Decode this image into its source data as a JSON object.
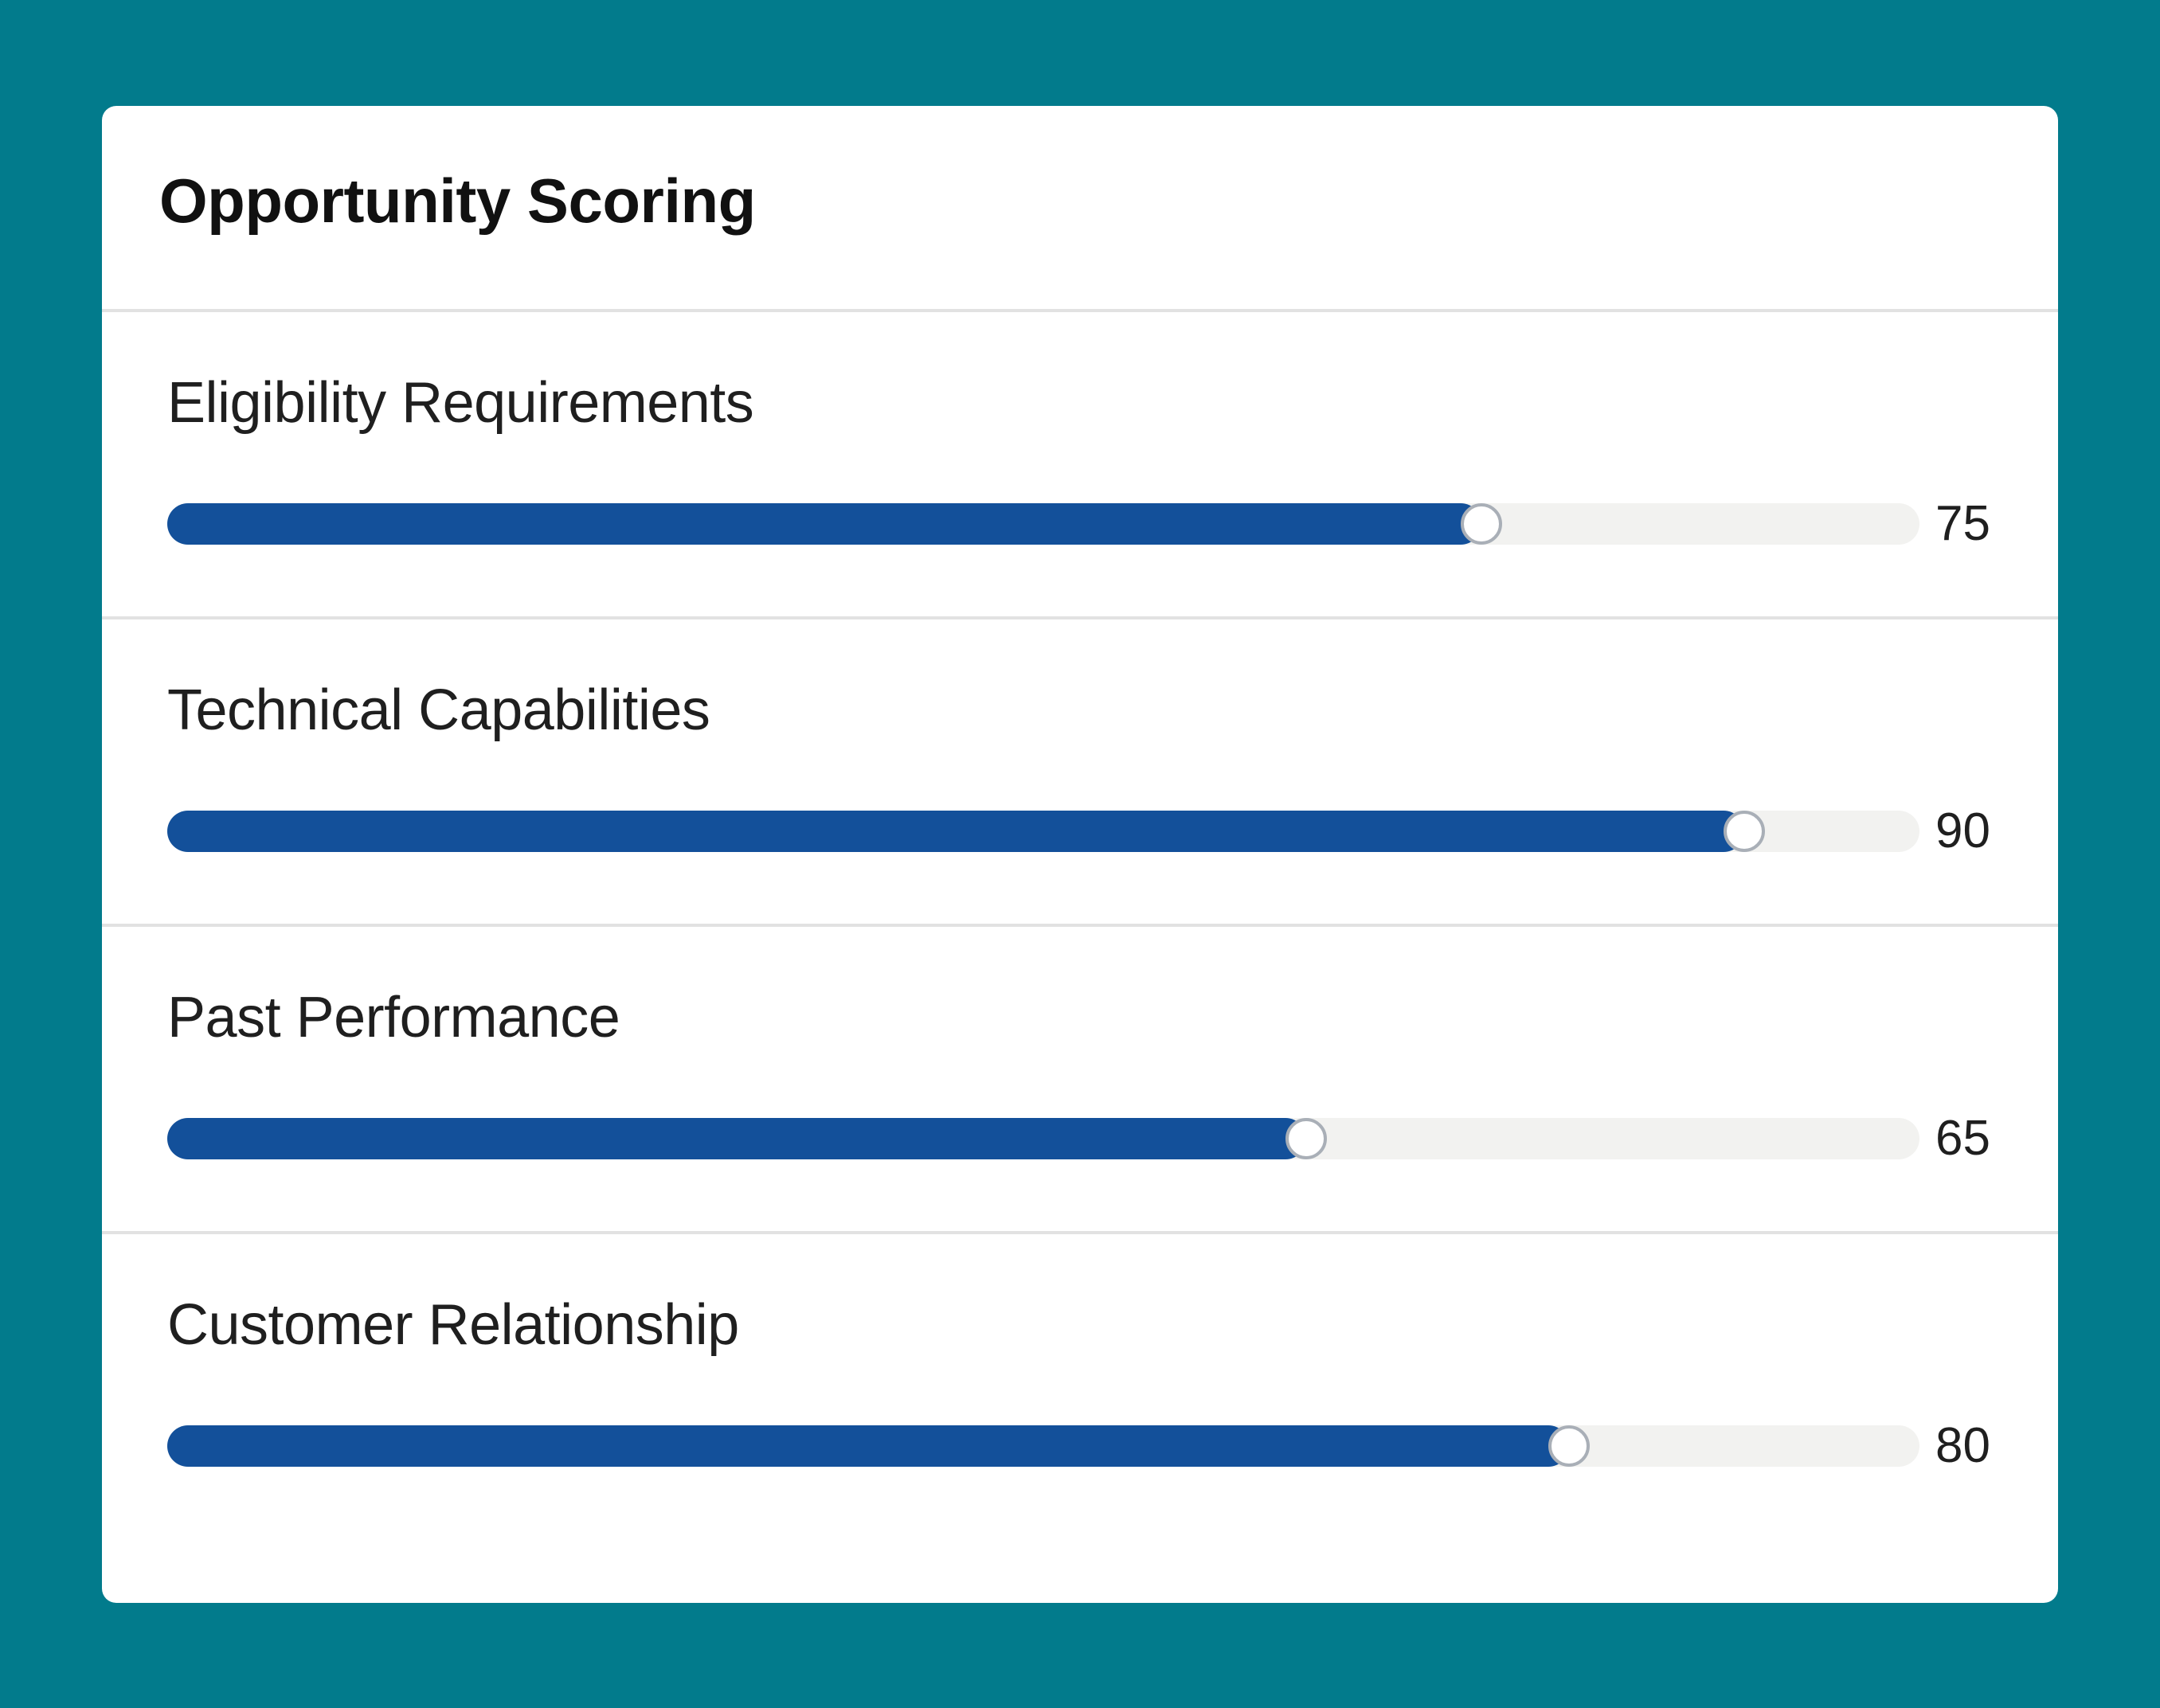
{
  "card": {
    "title": "Opportunity Scoring"
  },
  "max_score": 100,
  "colors": {
    "background": "#027b8c",
    "fill": "#13509a",
    "track": "#f2f2f0"
  },
  "scores": [
    {
      "label": "Eligibility Requirements",
      "value": 75
    },
    {
      "label": "Technical Capabilities",
      "value": 90
    },
    {
      "label": "Past Performance",
      "value": 65
    },
    {
      "label": "Customer Relationship",
      "value": 80
    }
  ]
}
